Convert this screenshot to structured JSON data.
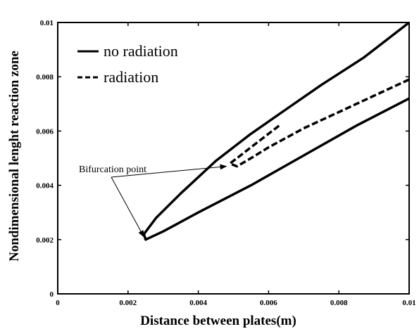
{
  "chart_data": {
    "type": "line",
    "xlabel": "Distance between plates(m)",
    "ylabel": "Nondimensional lenght reaction zone",
    "xlim": [
      0,
      0.01
    ],
    "ylim": [
      0,
      0.01
    ],
    "xticks": [
      "0",
      "0.002",
      "0.004",
      "0.006",
      "0.008",
      "0.01"
    ],
    "yticks": [
      "0",
      "0.002",
      "0.004",
      "0.006",
      "0.008",
      "0.01"
    ],
    "grid": false,
    "legend_position": "top-left",
    "series": [
      {
        "name": "no radiation",
        "style": "solid",
        "color": "#000000",
        "points": [
          [
            0.01,
            0.0072
          ],
          [
            0.0085,
            0.0062
          ],
          [
            0.007,
            0.0051
          ],
          [
            0.0055,
            0.004
          ],
          [
            0.004,
            0.003
          ],
          [
            0.003,
            0.0023
          ],
          [
            0.0025,
            0.002
          ],
          [
            0.00245,
            0.0022
          ],
          [
            0.0028,
            0.0028
          ],
          [
            0.0035,
            0.0037
          ],
          [
            0.0045,
            0.0049
          ],
          [
            0.0055,
            0.0059
          ],
          [
            0.0065,
            0.0068
          ],
          [
            0.0075,
            0.0077
          ],
          [
            0.0087,
            0.0087
          ],
          [
            0.01,
            0.01
          ]
        ]
      },
      {
        "name": "radiation",
        "style": "dashed",
        "color": "#000000",
        "points": [
          [
            0.01,
            0.0079
          ],
          [
            0.009,
            0.0073
          ],
          [
            0.008,
            0.0067
          ],
          [
            0.007,
            0.0061
          ],
          [
            0.006,
            0.0054
          ],
          [
            0.0055,
            0.005
          ],
          [
            0.0051,
            0.0047
          ],
          [
            0.0049,
            0.0048
          ],
          [
            0.0052,
            0.0051
          ],
          [
            0.0057,
            0.0056
          ],
          [
            0.0063,
            0.0062
          ]
        ]
      }
    ],
    "annotations": [
      {
        "text": "Bifurcation point",
        "targets": [
          [
            0.00245,
            0.0021
          ],
          [
            0.0048,
            0.0047
          ]
        ]
      }
    ]
  },
  "colors": {
    "line": "#000000",
    "background": "#ffffff"
  }
}
